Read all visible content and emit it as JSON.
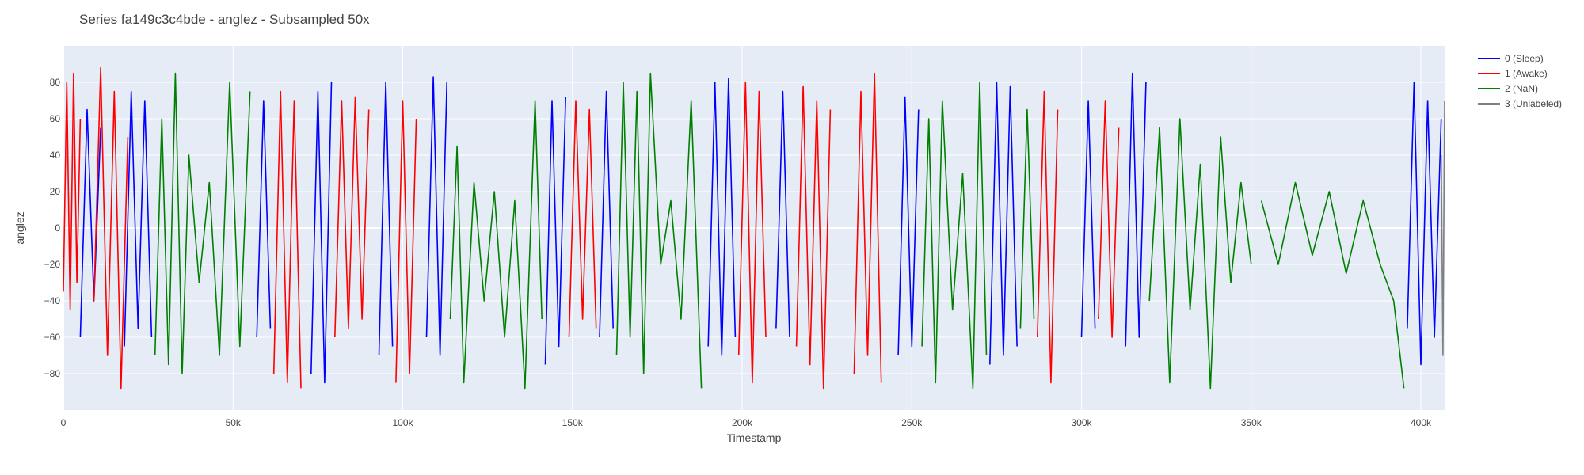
{
  "chart_data": {
    "type": "line",
    "title": "Series fa149c3c4bde - anglez - Subsampled 50x",
    "xlabel": "Timestamp",
    "ylabel": "anglez",
    "xlim": [
      0,
      407000
    ],
    "ylim": [
      -100,
      100
    ],
    "x_ticks": [
      0,
      50000,
      100000,
      150000,
      200000,
      250000,
      300000,
      350000,
      400000
    ],
    "x_tick_labels": [
      "0",
      "50k",
      "100k",
      "150k",
      "200k",
      "250k",
      "300k",
      "350k",
      "400k"
    ],
    "y_ticks": [
      -80,
      -60,
      -40,
      -20,
      0,
      20,
      40,
      60,
      80
    ],
    "y_tick_labels": [
      "−80",
      "−60",
      "−40",
      "−20",
      "0",
      "20",
      "40",
      "60",
      "80"
    ],
    "grid": true,
    "legend_position": "top-right",
    "series": [
      {
        "name": "0 (Sleep)",
        "color": "#0000ff",
        "segments": [
          {
            "x": [
              5000,
              7000,
              9000,
              11000
            ],
            "y": [
              -60,
              65,
              -40,
              55
            ]
          },
          {
            "x": [
              18000,
              20000,
              22000,
              24000,
              26000
            ],
            "y": [
              -65,
              75,
              -55,
              70,
              -60
            ]
          },
          {
            "x": [
              57000,
              59000,
              61000
            ],
            "y": [
              -60,
              70,
              -55
            ]
          },
          {
            "x": [
              73000,
              75000,
              77000,
              79000
            ],
            "y": [
              -80,
              75,
              -85,
              80
            ]
          },
          {
            "x": [
              93000,
              95000,
              97000
            ],
            "y": [
              -70,
              80,
              -65
            ]
          },
          {
            "x": [
              107000,
              109000,
              111000,
              113000
            ],
            "y": [
              -60,
              83,
              -70,
              80
            ]
          },
          {
            "x": [
              142000,
              144000,
              146000,
              148000
            ],
            "y": [
              -75,
              70,
              -65,
              72
            ]
          },
          {
            "x": [
              158000,
              160000,
              162000
            ],
            "y": [
              -60,
              75,
              -55
            ]
          },
          {
            "x": [
              190000,
              192000,
              194000,
              196000,
              198000
            ],
            "y": [
              -65,
              80,
              -70,
              82,
              -60
            ]
          },
          {
            "x": [
              210000,
              212000,
              214000
            ],
            "y": [
              -55,
              75,
              -60
            ]
          },
          {
            "x": [
              246000,
              248000,
              250000,
              252000
            ],
            "y": [
              -70,
              72,
              -65,
              65
            ]
          },
          {
            "x": [
              273000,
              275000,
              277000,
              279000,
              281000
            ],
            "y": [
              -75,
              80,
              -70,
              78,
              -65
            ]
          },
          {
            "x": [
              300000,
              302000,
              304000
            ],
            "y": [
              -60,
              70,
              -55
            ]
          },
          {
            "x": [
              313000,
              315000,
              317000,
              319000
            ],
            "y": [
              -65,
              85,
              -60,
              80
            ]
          },
          {
            "x": [
              396000,
              398000,
              400000,
              402000,
              404000,
              406000
            ],
            "y": [
              -55,
              80,
              -75,
              70,
              -60,
              60
            ]
          }
        ]
      },
      {
        "name": "1 (Awake)",
        "color": "#ff0000",
        "segments": [
          {
            "x": [
              0,
              1000,
              2000,
              3000,
              4000,
              5000
            ],
            "y": [
              -35,
              80,
              -45,
              85,
              -30,
              60
            ]
          },
          {
            "x": [
              9000,
              11000,
              13000,
              15000,
              17000,
              19000
            ],
            "y": [
              -40,
              88,
              -70,
              75,
              -88,
              50
            ]
          },
          {
            "x": [
              62000,
              64000,
              66000,
              68000,
              70000
            ],
            "y": [
              -80,
              75,
              -85,
              70,
              -88
            ]
          },
          {
            "x": [
              80000,
              82000,
              84000,
              86000,
              88000,
              90000
            ],
            "y": [
              -60,
              70,
              -55,
              72,
              -50,
              65
            ]
          },
          {
            "x": [
              98000,
              100000,
              102000,
              104000
            ],
            "y": [
              -85,
              70,
              -80,
              60
            ]
          },
          {
            "x": [
              149000,
              151000,
              153000,
              155000,
              157000
            ],
            "y": [
              -60,
              70,
              -50,
              65,
              -55
            ]
          },
          {
            "x": [
              199000,
              201000,
              203000,
              205000,
              207000
            ],
            "y": [
              -70,
              80,
              -85,
              75,
              -60
            ]
          },
          {
            "x": [
              216000,
              218000,
              220000,
              222000,
              224000,
              226000
            ],
            "y": [
              -65,
              78,
              -75,
              70,
              -88,
              65
            ]
          },
          {
            "x": [
              233000,
              235000,
              237000,
              239000,
              241000
            ],
            "y": [
              -80,
              75,
              -70,
              85,
              -85
            ]
          },
          {
            "x": [
              287000,
              289000,
              291000,
              293000
            ],
            "y": [
              -60,
              75,
              -85,
              65
            ]
          },
          {
            "x": [
              305000,
              307000,
              309000,
              311000
            ],
            "y": [
              -50,
              70,
              -60,
              55
            ]
          }
        ]
      },
      {
        "name": "2 (NaN)",
        "color": "#008000",
        "segments": [
          {
            "x": [
              27000,
              29000,
              31000,
              33000,
              35000,
              37000,
              40000,
              43000,
              46000,
              49000,
              52000,
              55000
            ],
            "y": [
              -70,
              60,
              -75,
              85,
              -80,
              40,
              -30,
              25,
              -70,
              80,
              -65,
              75
            ]
          },
          {
            "x": [
              114000,
              116000,
              118000,
              121000,
              124000,
              127000,
              130000,
              133000,
              136000,
              139000,
              141000
            ],
            "y": [
              -50,
              45,
              -85,
              25,
              -40,
              20,
              -60,
              15,
              -88,
              70,
              -50
            ]
          },
          {
            "x": [
              163000,
              165000,
              167000,
              169000,
              171000,
              173000,
              176000,
              179000,
              182000,
              185000,
              188000
            ],
            "y": [
              -70,
              80,
              -60,
              75,
              -80,
              85,
              -20,
              15,
              -50,
              70,
              -88
            ]
          },
          {
            "x": [
              253000,
              255000,
              257000,
              259000,
              262000,
              265000,
              268000,
              270000,
              272000
            ],
            "y": [
              -65,
              60,
              -85,
              70,
              -45,
              30,
              -88,
              80,
              -70
            ]
          },
          {
            "x": [
              282000,
              284000,
              286000
            ],
            "y": [
              -55,
              65,
              -50
            ]
          },
          {
            "x": [
              320000,
              323000,
              326000,
              329000,
              332000,
              335000,
              338000,
              341000,
              344000,
              347000,
              350000
            ],
            "y": [
              -40,
              55,
              -85,
              60,
              -45,
              35,
              -88,
              50,
              -30,
              25,
              -20
            ]
          },
          {
            "x": [
              353000,
              358000,
              363000,
              368000,
              373000,
              378000,
              383000,
              388000,
              392000,
              395000
            ],
            "y": [
              15,
              -20,
              25,
              -15,
              20,
              -25,
              15,
              -20,
              -40,
              -88
            ]
          }
        ]
      },
      {
        "name": "3 (Unlabeled)",
        "color": "#808080",
        "segments": [
          {
            "x": [
              406000,
              406500,
              407000
            ],
            "y": [
              40,
              -70,
              70
            ]
          }
        ]
      }
    ]
  }
}
